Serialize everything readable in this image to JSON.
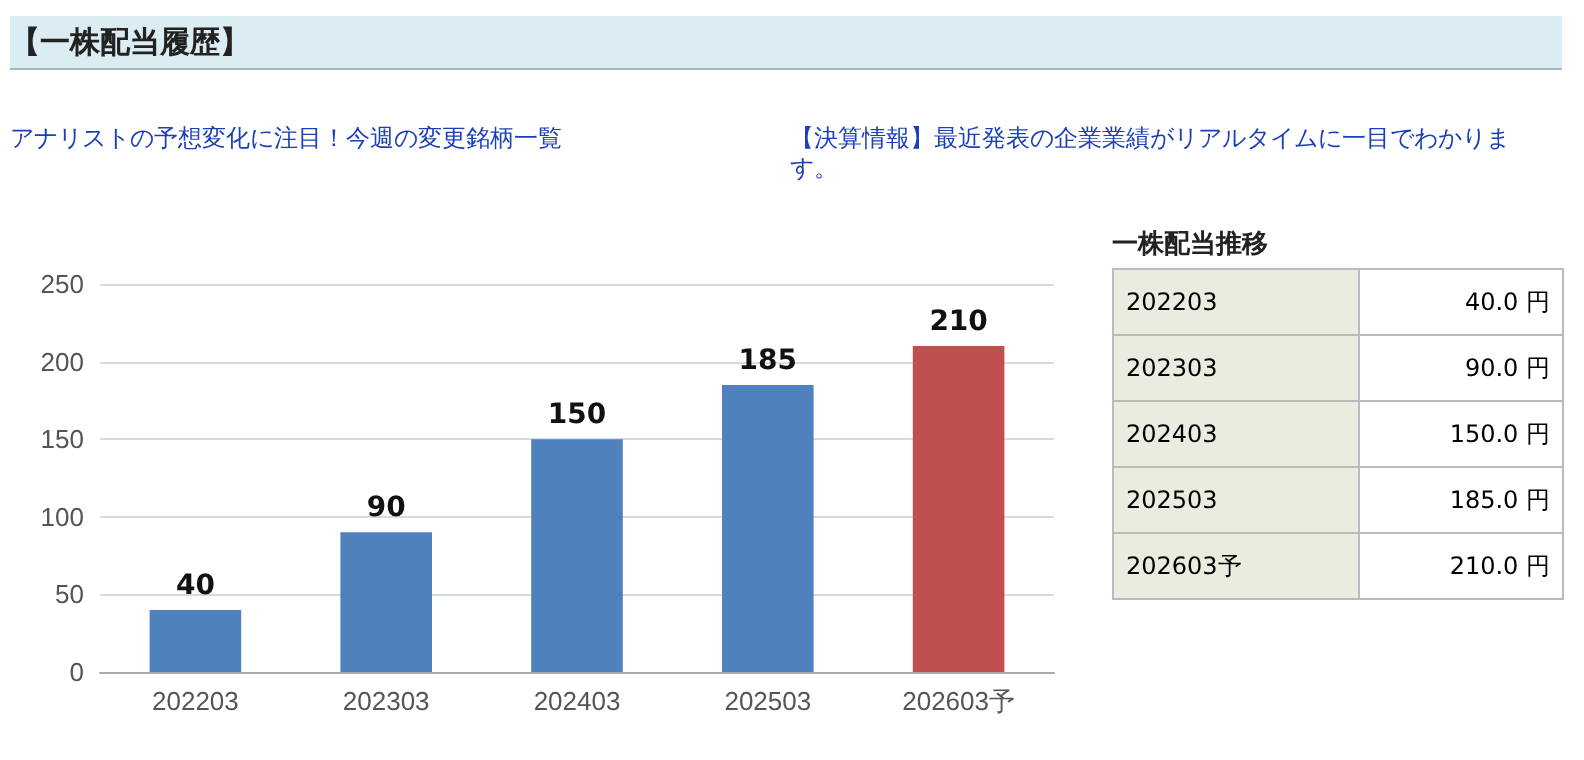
{
  "chart_data": {
    "type": "bar",
    "title": "【一株配当履歴】",
    "annotations": [
      "アナリストの予想変化に注目！今週の変更銘柄一覧",
      "【決算情報】最近発表の企業業績がリアルタイムに一目でわかります。",
      "一株配当推移",
      "202203",
      "40.0 円",
      "202303",
      "90.0 円",
      "202403",
      "150.0 円",
      "202503",
      "185.0 円",
      "202603予",
      "210.0 円"
    ],
    "categories": [
      "202203",
      "202303",
      "202403",
      "202503",
      "202603予"
    ],
    "values": [
      40,
      90,
      150,
      185,
      210
    ],
    "colors": [
      "#4f81bd",
      "#4f81bd",
      "#4f81bd",
      "#4f81bd",
      "#c0504d"
    ],
    "ylim": [
      0,
      250
    ],
    "yticks": [
      0,
      50,
      100,
      150,
      200,
      250
    ],
    "grid": "y",
    "data_labels": true
  }
}
